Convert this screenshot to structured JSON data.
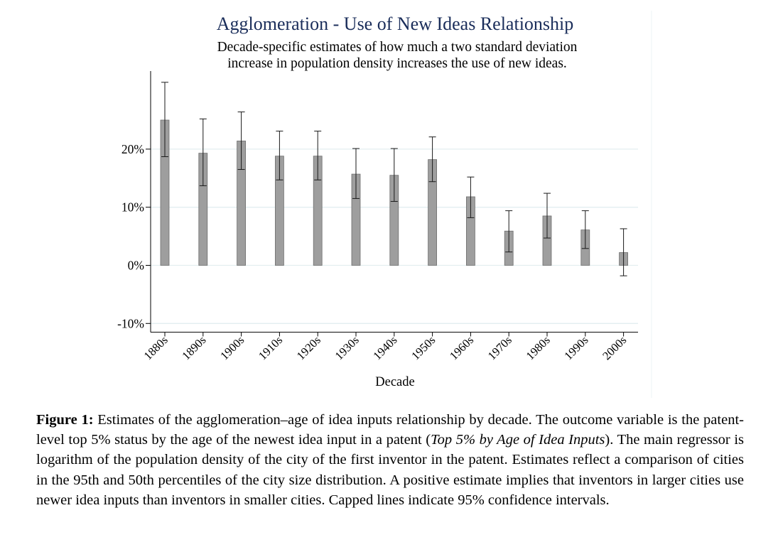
{
  "chart_data": {
    "type": "bar",
    "title": "Agglomeration - Use of New Ideas Relationship",
    "subtitle_line1": "Decade-specific estimates of how much a two standard deviation",
    "subtitle_line2": "increase in population density increases the use of new ideas.",
    "xlabel": "Decade",
    "ylabel": "",
    "categories": [
      "1880s",
      "1890s",
      "1900s",
      "1910s",
      "1920s",
      "1930s",
      "1940s",
      "1950s",
      "1960s",
      "1970s",
      "1980s",
      "1990s",
      "2000s"
    ],
    "values": [
      25.0,
      19.3,
      21.4,
      18.8,
      18.8,
      15.7,
      15.5,
      18.2,
      11.8,
      5.9,
      8.5,
      6.1,
      2.2
    ],
    "ci_low": [
      18.7,
      13.7,
      16.5,
      14.7,
      14.7,
      11.5,
      11.0,
      14.4,
      8.2,
      2.3,
      4.7,
      2.9,
      -1.8
    ],
    "ci_high": [
      31.5,
      25.2,
      26.4,
      23.1,
      23.1,
      20.1,
      20.1,
      22.1,
      15.2,
      9.4,
      12.4,
      9.4,
      6.3
    ],
    "yticks": [
      -10,
      0,
      10,
      20
    ],
    "ytick_labels": [
      "-10%",
      "0%",
      "10%",
      "20%"
    ],
    "ylim": [
      -11.5,
      33.5
    ],
    "grid": true,
    "legend": "none",
    "colors": {
      "bar": "#9e9e9e",
      "bar_edge": "#6e6e6e",
      "grid": "#e3eef0",
      "title": "#1a2d5a"
    }
  },
  "caption": {
    "lead": "Figure 1:",
    "text1": " Estimates of the agglomeration–age of idea inputs relationship by decade.  The outcome variable is the patent-level top 5% status by the age of the newest idea input in a patent (",
    "italic": "Top 5% by Age of Idea Inputs",
    "text2": ").  The main regressor is logarithm of the population density of the city of the first inventor in the patent. Estimates reflect a comparison of cities in the 95th and 50th percentiles of the city size distribution.  A positive estimate implies that inventors in larger cities use newer idea inputs than inventors in smaller cities. Capped lines indicate 95% confidence intervals."
  }
}
